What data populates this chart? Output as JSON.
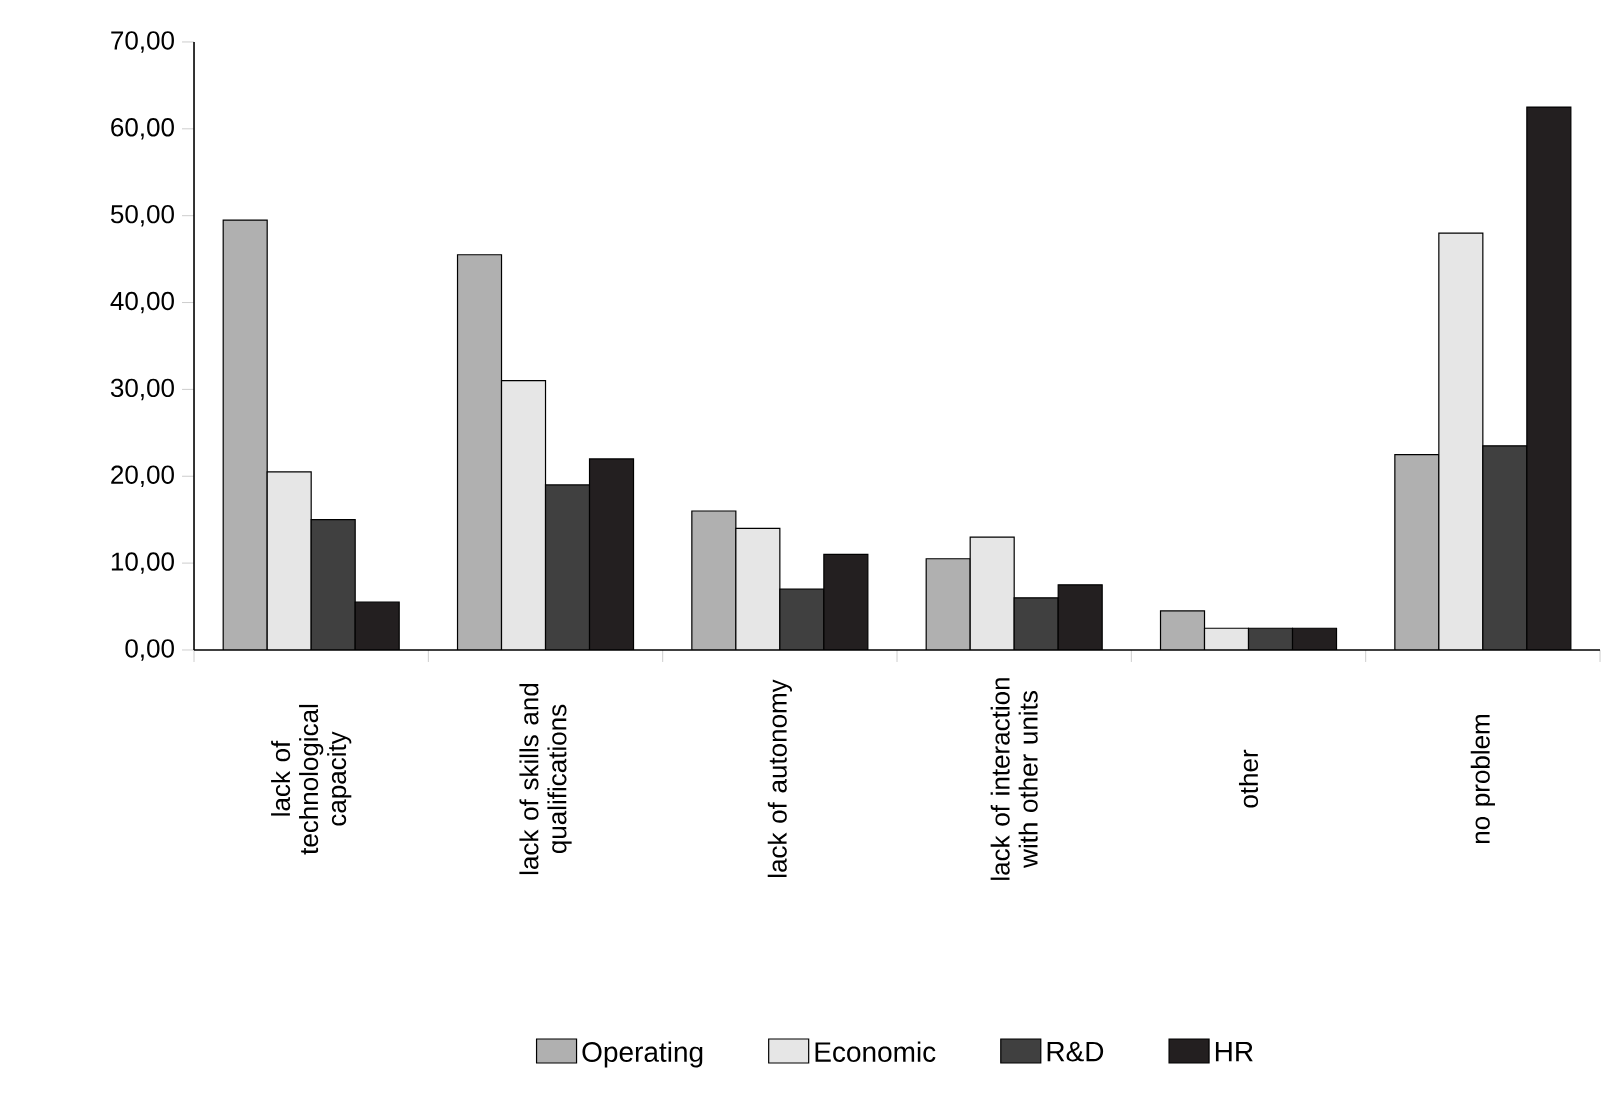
{
  "chart_data": {
    "type": "bar",
    "categories": [
      "lack of technological capacity",
      "lack of skills and qualifications",
      "lack of autonomy",
      "lack of interaction with other units",
      "other",
      "no problem"
    ],
    "series": [
      {
        "name": "Operating",
        "color": "#b0b0b0",
        "values": [
          49.5,
          45.5,
          16,
          10.5,
          4.5,
          22.5
        ]
      },
      {
        "name": "Economic",
        "color": "#e6e6e6",
        "values": [
          20.5,
          31,
          14,
          13,
          2.5,
          48
        ]
      },
      {
        "name": "R&D",
        "color": "#404040",
        "values": [
          15,
          19,
          7,
          6,
          2.5,
          23.5
        ]
      },
      {
        "name": "HR",
        "color": "#231f20",
        "values": [
          5.5,
          22,
          11,
          7.5,
          2.5,
          62.5
        ]
      }
    ],
    "ylim": [
      0,
      70
    ],
    "yticks": [
      {
        "value": 0,
        "label": "0,00"
      },
      {
        "value": 10,
        "label": "10,00"
      },
      {
        "value": 20,
        "label": "20,00"
      },
      {
        "value": 30,
        "label": "30,00"
      },
      {
        "value": 40,
        "label": "40,00"
      },
      {
        "value": 50,
        "label": "50,00"
      },
      {
        "value": 60,
        "label": "60,00"
      },
      {
        "value": 70,
        "label": "70,00"
      }
    ],
    "grid": false,
    "legend": "bottom"
  }
}
